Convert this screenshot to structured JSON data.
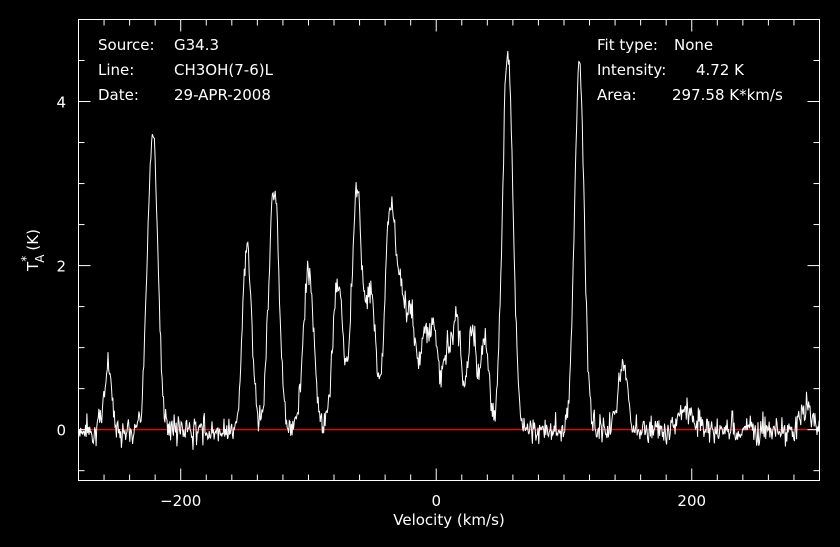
{
  "chart_data": {
    "type": "line",
    "xlabel": "Velocity (km/s)",
    "ylabel": "T",
    "ylabel_sup": "*",
    "ylabel_sub": "A",
    "ylabel_unit": "(K)",
    "xlim": [
      -280,
      300
    ],
    "ylim": [
      -0.62,
      5.0
    ],
    "x_ticks": [
      -200,
      0,
      200
    ],
    "y_ticks": [
      0,
      2,
      4
    ],
    "grid": false,
    "colors": {
      "background": "#000000",
      "spectrum": "#ffffff",
      "baseline": "#ff0000",
      "frame": "#ffffff"
    },
    "baseline_value": 0,
    "info_left": [
      {
        "key": "Source:",
        "value": "G34.3"
      },
      {
        "key": "Line:",
        "value": "CH3OH(7-6)L"
      },
      {
        "key": "Date:",
        "value": "29-APR-2008"
      }
    ],
    "info_right": [
      {
        "key": "Fit type:",
        "value": "None"
      },
      {
        "key": "Intensity:",
        "value": "4.72 K"
      },
      {
        "key": "Area:",
        "value": "297.58 K*km/s"
      }
    ],
    "series": [
      {
        "peaks": [
          {
            "v": -257,
            "amp": 0.78,
            "width": 3
          },
          {
            "v": -222,
            "amp": 3.65,
            "width": 4
          },
          {
            "v": -148,
            "amp": 2.25,
            "width": 3.5
          },
          {
            "v": -127,
            "amp": 3.0,
            "width": 4
          },
          {
            "v": -100,
            "amp": 1.95,
            "width": 4
          },
          {
            "v": -77,
            "amp": 1.8,
            "width": 4
          },
          {
            "v": -62,
            "amp": 2.95,
            "width": 4
          },
          {
            "v": -51,
            "amp": 1.7,
            "width": 3.5
          },
          {
            "v": -36,
            "amp": 2.65,
            "width": 4
          },
          {
            "v": -27,
            "amp": 1.55,
            "width": 4
          },
          {
            "v": -19,
            "amp": 1.25,
            "width": 3
          },
          {
            "v": -10,
            "amp": 1.1,
            "width": 3
          },
          {
            "v": -2,
            "amp": 1.3,
            "width": 3.5
          },
          {
            "v": 8,
            "amp": 0.85,
            "width": 3
          },
          {
            "v": 16,
            "amp": 1.35,
            "width": 3.5
          },
          {
            "v": 28,
            "amp": 1.2,
            "width": 3.5
          },
          {
            "v": 38,
            "amp": 1.1,
            "width": 3
          },
          {
            "v": 56,
            "amp": 4.72,
            "width": 4
          },
          {
            "v": 112,
            "amp": 4.45,
            "width": 3.8
          },
          {
            "v": 146,
            "amp": 0.85,
            "width": 3.5
          },
          {
            "v": 195,
            "amp": 0.25,
            "width": 6
          },
          {
            "v": 290,
            "amp": 0.3,
            "width": 4
          }
        ],
        "noise_rms": 0.12
      }
    ]
  }
}
